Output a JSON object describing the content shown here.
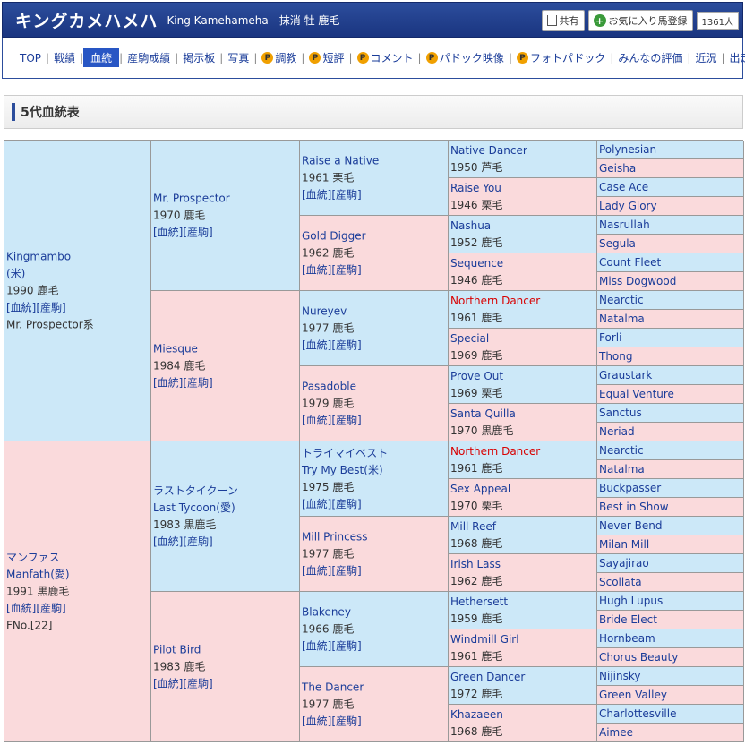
{
  "header": {
    "name": "キングカメハメハ",
    "sub": "King Kamehameha　抹消 牡 鹿毛",
    "share_label": "共有",
    "favorite_label": "お気に入り馬登録",
    "favorite_count": "1361人"
  },
  "nav": {
    "items": [
      {
        "label": "TOP",
        "active": false,
        "premium": false
      },
      {
        "label": "戦績",
        "active": false,
        "premium": false
      },
      {
        "label": "血統",
        "active": true,
        "premium": false
      },
      {
        "label": "産駒成績",
        "active": false,
        "premium": false
      },
      {
        "label": "掲示板",
        "active": false,
        "premium": false
      },
      {
        "label": "写真",
        "active": false,
        "premium": false
      },
      {
        "label": "調教",
        "active": false,
        "premium": true
      },
      {
        "label": "短評",
        "active": false,
        "premium": true
      },
      {
        "label": "コメント",
        "active": false,
        "premium": true
      },
      {
        "label": "パドック映像",
        "active": false,
        "premium": true
      },
      {
        "label": "フォトパドック",
        "active": false,
        "premium": true
      },
      {
        "label": "みんなの評価",
        "active": false,
        "premium": false
      },
      {
        "label": "近況",
        "active": false,
        "premium": false
      },
      {
        "label": "出走産駒",
        "active": false,
        "premium": false
      }
    ],
    "premium_mark": "P"
  },
  "section": {
    "title": "5代血統表"
  },
  "links_label": "[血統][産駒]",
  "pedigree": {
    "gen1": [
      {
        "lines": [
          "Kingmambo",
          "(米)"
        ],
        "info": "1990 鹿毛",
        "extra": "Mr. Prospector系",
        "color": "blue"
      },
      {
        "lines": [
          "マンファス",
          "Manfath(愛)"
        ],
        "info": "1991 黒鹿毛",
        "extra": "FNo.[22]",
        "color": "pink"
      }
    ],
    "gen2": [
      {
        "lines": [
          "Mr. Prospector"
        ],
        "info": "1970 鹿毛",
        "color": "blue"
      },
      {
        "lines": [
          "Miesque"
        ],
        "info": "1984 鹿毛",
        "color": "pink"
      },
      {
        "lines": [
          "ラストタイクーン",
          "Last Tycoon(愛)"
        ],
        "info": "1983 黒鹿毛",
        "color": "blue"
      },
      {
        "lines": [
          "Pilot Bird"
        ],
        "info": "1983 鹿毛",
        "color": "pink"
      }
    ],
    "gen3": [
      {
        "lines": [
          "Raise a Native"
        ],
        "info": "1961 栗毛",
        "color": "blue"
      },
      {
        "lines": [
          "Gold Digger"
        ],
        "info": "1962 鹿毛",
        "color": "pink"
      },
      {
        "lines": [
          "Nureyev"
        ],
        "info": "1977 鹿毛",
        "color": "blue"
      },
      {
        "lines": [
          "Pasadoble"
        ],
        "info": "1979 鹿毛",
        "color": "pink"
      },
      {
        "lines": [
          "トライマイベスト",
          "Try My Best(米)"
        ],
        "info": "1975 鹿毛",
        "color": "blue"
      },
      {
        "lines": [
          "Mill Princess"
        ],
        "info": "1977 鹿毛",
        "color": "pink"
      },
      {
        "lines": [
          "Blakeney"
        ],
        "info": "1966 鹿毛",
        "color": "blue"
      },
      {
        "lines": [
          "The Dancer"
        ],
        "info": "1977 鹿毛",
        "color": "pink"
      }
    ],
    "gen4": [
      {
        "name": "Native Dancer",
        "info": "1950 芦毛",
        "color": "blue",
        "red": false
      },
      {
        "name": "Raise You",
        "info": "1946 栗毛",
        "color": "pink",
        "red": false
      },
      {
        "name": "Nashua",
        "info": "1952 鹿毛",
        "color": "blue",
        "red": false
      },
      {
        "name": "Sequence",
        "info": "1946 鹿毛",
        "color": "pink",
        "red": false
      },
      {
        "name": "Northern Dancer",
        "info": "1961 鹿毛",
        "color": "blue",
        "red": true
      },
      {
        "name": "Special",
        "info": "1969 鹿毛",
        "color": "pink",
        "red": false
      },
      {
        "name": "Prove Out",
        "info": "1969 栗毛",
        "color": "blue",
        "red": false
      },
      {
        "name": "Santa Quilla",
        "info": "1970 黒鹿毛",
        "color": "pink",
        "red": false
      },
      {
        "name": "Northern Dancer",
        "info": "1961 鹿毛",
        "color": "blue",
        "red": true
      },
      {
        "name": "Sex Appeal",
        "info": "1970 栗毛",
        "color": "pink",
        "red": false
      },
      {
        "name": "Mill Reef",
        "info": "1968 鹿毛",
        "color": "blue",
        "red": false
      },
      {
        "name": "Irish Lass",
        "info": "1962 鹿毛",
        "color": "pink",
        "red": false
      },
      {
        "name": "Hethersett",
        "info": "1959 鹿毛",
        "color": "blue",
        "red": false
      },
      {
        "name": "Windmill Girl",
        "info": "1961 鹿毛",
        "color": "pink",
        "red": false
      },
      {
        "name": "Green Dancer",
        "info": "1972 鹿毛",
        "color": "blue",
        "red": false
      },
      {
        "name": "Khazaeen",
        "info": "1968 鹿毛",
        "color": "pink",
        "red": false
      }
    ],
    "gen5": [
      {
        "name": "Polynesian",
        "color": "blue"
      },
      {
        "name": "Geisha",
        "color": "pink"
      },
      {
        "name": "Case Ace",
        "color": "blue"
      },
      {
        "name": "Lady Glory",
        "color": "pink"
      },
      {
        "name": "Nasrullah",
        "color": "blue"
      },
      {
        "name": "Segula",
        "color": "pink"
      },
      {
        "name": "Count Fleet",
        "color": "blue"
      },
      {
        "name": "Miss Dogwood",
        "color": "pink"
      },
      {
        "name": "Nearctic",
        "color": "blue"
      },
      {
        "name": "Natalma",
        "color": "pink"
      },
      {
        "name": "Forli",
        "color": "blue"
      },
      {
        "name": "Thong",
        "color": "pink"
      },
      {
        "name": "Graustark",
        "color": "blue"
      },
      {
        "name": "Equal Venture",
        "color": "pink"
      },
      {
        "name": "Sanctus",
        "color": "blue"
      },
      {
        "name": "Neriad",
        "color": "pink"
      },
      {
        "name": "Nearctic",
        "color": "blue"
      },
      {
        "name": "Natalma",
        "color": "pink"
      },
      {
        "name": "Buckpasser",
        "color": "blue"
      },
      {
        "name": "Best in Show",
        "color": "pink"
      },
      {
        "name": "Never Bend",
        "color": "blue"
      },
      {
        "name": "Milan Mill",
        "color": "pink"
      },
      {
        "name": "Sayajirao",
        "color": "blue"
      },
      {
        "name": "Scollata",
        "color": "pink"
      },
      {
        "name": "Hugh Lupus",
        "color": "blue"
      },
      {
        "name": "Bride Elect",
        "color": "pink"
      },
      {
        "name": "Hornbeam",
        "color": "blue"
      },
      {
        "name": "Chorus Beauty",
        "color": "pink"
      },
      {
        "name": "Nijinsky",
        "color": "blue"
      },
      {
        "name": "Green Valley",
        "color": "pink"
      },
      {
        "name": "Charlottesville",
        "color": "blue"
      },
      {
        "name": "Aimee",
        "color": "pink"
      }
    ]
  },
  "colors": {
    "blue_cell": "#cce8f8",
    "pink_cell": "#fadadc",
    "header_bg": "#1a3580",
    "link": "#1a3c99",
    "highlight_red": "#d80000"
  }
}
